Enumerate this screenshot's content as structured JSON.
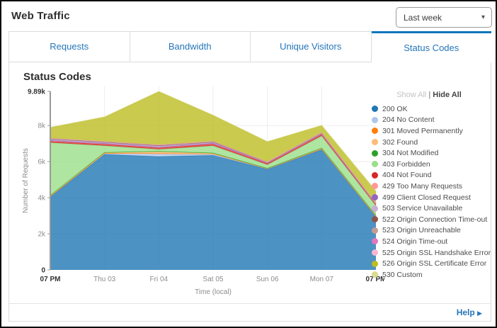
{
  "header": {
    "title": "Web Traffic",
    "time_range": {
      "value": "Last week"
    }
  },
  "tabs": {
    "items": [
      {
        "label": "Requests",
        "active": false
      },
      {
        "label": "Bandwidth",
        "active": false
      },
      {
        "label": "Unique Visitors",
        "active": false
      },
      {
        "label": "Status Codes",
        "active": true
      }
    ]
  },
  "chart": {
    "title": "Status Codes"
  },
  "legend": {
    "show_all_label": "Show All",
    "separator": "|",
    "hide_all_label": "Hide All"
  },
  "footer": {
    "help_label": "Help"
  },
  "colors": {
    "accent_blue": "#2576b9",
    "active_tab_border": "#0d76bc"
  },
  "chart_data": {
    "type": "area",
    "stacked": true,
    "title": "Status Codes",
    "xlabel": "Time (local)",
    "ylabel": "Number of Requests",
    "x": [
      "07 PM",
      "Thu 03",
      "Fri 04",
      "Sat 05",
      "Sun 06",
      "Mon 07",
      "07 PM"
    ],
    "x_bold": [
      true,
      false,
      false,
      false,
      false,
      false,
      true
    ],
    "ylim": [
      0,
      9890
    ],
    "y_ticks": [
      {
        "value": 0,
        "label": "0",
        "bold": true
      },
      {
        "value": 2000,
        "label": "2k",
        "bold": false
      },
      {
        "value": 4000,
        "label": "4k",
        "bold": false
      },
      {
        "value": 6000,
        "label": "6k",
        "bold": false
      },
      {
        "value": 8000,
        "label": "8k",
        "bold": false
      },
      {
        "value": 9890,
        "label": "9.89k",
        "bold": true
      }
    ],
    "grid": true,
    "legend_position": "right",
    "fill_opacity": 0.8,
    "series": [
      {
        "name": "200 OK",
        "color": "#1f77b4",
        "values": [
          4050,
          6400,
          6280,
          6350,
          5580,
          6670,
          2950
        ]
      },
      {
        "name": "204 No Content",
        "color": "#aec7e8",
        "values": [
          20,
          50,
          150,
          70,
          20,
          20,
          20
        ]
      },
      {
        "name": "301 Moved Permanently",
        "color": "#ff7f0e",
        "values": [
          10,
          10,
          20,
          10,
          10,
          10,
          10
        ]
      },
      {
        "name": "302 Found",
        "color": "#ffbb78",
        "values": [
          40,
          40,
          100,
          40,
          10,
          40,
          40
        ]
      },
      {
        "name": "304 Not Modified",
        "color": "#2ca02c",
        "values": [
          10,
          10,
          20,
          10,
          10,
          10,
          10
        ]
      },
      {
        "name": "403 Forbidden",
        "color": "#98df8a",
        "values": [
          2920,
          370,
          110,
          400,
          200,
          670,
          520
        ]
      },
      {
        "name": "404 Not Found",
        "color": "#d62728",
        "values": [
          80,
          80,
          80,
          90,
          80,
          100,
          70
        ]
      },
      {
        "name": "429 Too Many Requests",
        "color": "#ff9896",
        "values": [
          20,
          20,
          20,
          20,
          10,
          10,
          10
        ]
      },
      {
        "name": "499 Client Closed Request",
        "color": "#9467bd",
        "values": [
          30,
          30,
          30,
          30,
          10,
          20,
          20
        ]
      },
      {
        "name": "503 Service Unavailable",
        "color": "#c5b0d5",
        "values": [
          60,
          50,
          60,
          50,
          20,
          30,
          20
        ]
      },
      {
        "name": "522 Origin Connection Time-out",
        "color": "#8c564b",
        "values": [
          20,
          20,
          20,
          20,
          10,
          10,
          10
        ]
      },
      {
        "name": "523 Origin Unreachable",
        "color": "#c49c94",
        "values": [
          20,
          20,
          20,
          20,
          10,
          10,
          10
        ]
      },
      {
        "name": "524 Origin Time-out",
        "color": "#e377c2",
        "values": [
          10,
          10,
          10,
          10,
          10,
          10,
          10
        ]
      },
      {
        "name": "525 Origin SSL Handshake Error",
        "color": "#f7b6d2",
        "values": [
          10,
          10,
          10,
          10,
          10,
          10,
          10
        ]
      },
      {
        "name": "526 Origin SSL Certificate Error",
        "color": "#bcbd22",
        "values": [
          580,
          1330,
          2940,
          1420,
          1100,
          380,
          650
        ]
      },
      {
        "name": "530 Custom",
        "color": "#dbdb8d",
        "values": [
          20,
          30,
          20,
          20,
          20,
          10,
          10
        ]
      }
    ]
  }
}
